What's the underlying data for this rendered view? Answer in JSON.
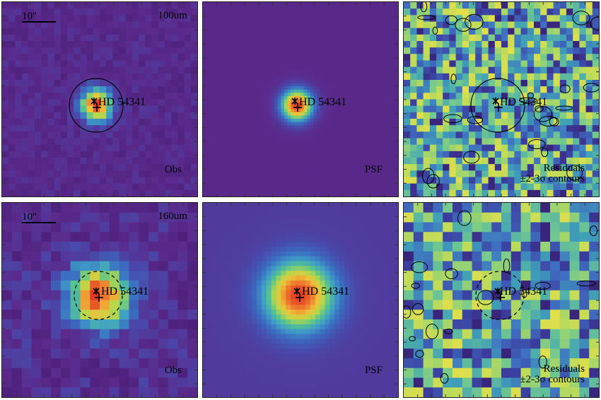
{
  "panels": {
    "top_obs": {
      "band": "100um",
      "kind": "Obs",
      "scale": "10\"",
      "target": "HD 54341"
    },
    "top_psf": {
      "kind": "PSF",
      "target": "HD 54341"
    },
    "top_res": {
      "kind": "Residuals",
      "contours": "±2-3σ contours",
      "target": "HD 54341"
    },
    "bottom_obs": {
      "band": "160um",
      "kind": "Obs",
      "scale": "10\"",
      "target": "HD 54341"
    },
    "bottom_psf": {
      "kind": "PSF",
      "target": "HD 54341"
    },
    "bottom_res": {
      "kind": "Residuals",
      "contours": "±2-3σ contours",
      "target": "HD 54341"
    }
  },
  "colors": {
    "background_violet": "#5a2a8c",
    "background_blue": "#3f5ab0",
    "peak_red": "#e8402a",
    "residual_green": "#8fd06a",
    "residual_yellow": "#d8df4a"
  }
}
